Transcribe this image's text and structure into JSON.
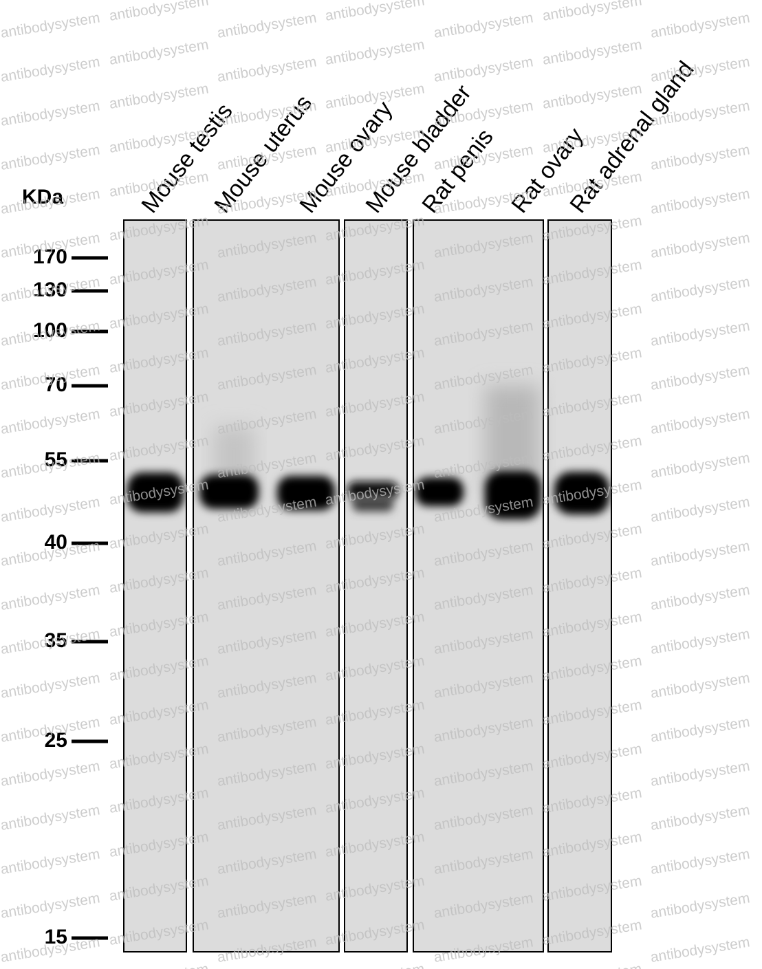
{
  "unit_label": "KDa",
  "lanes": [
    "Mouse testis",
    "Mouse uterus",
    "Mouse ovary",
    "Mouse bladder",
    "Rat penis",
    "Rat ovary",
    "Rat adrenal gland"
  ],
  "markers": [
    "170",
    "130",
    "100",
    "70",
    "55",
    "40",
    "35",
    "25",
    "15"
  ],
  "watermark": "antibodysystem"
}
